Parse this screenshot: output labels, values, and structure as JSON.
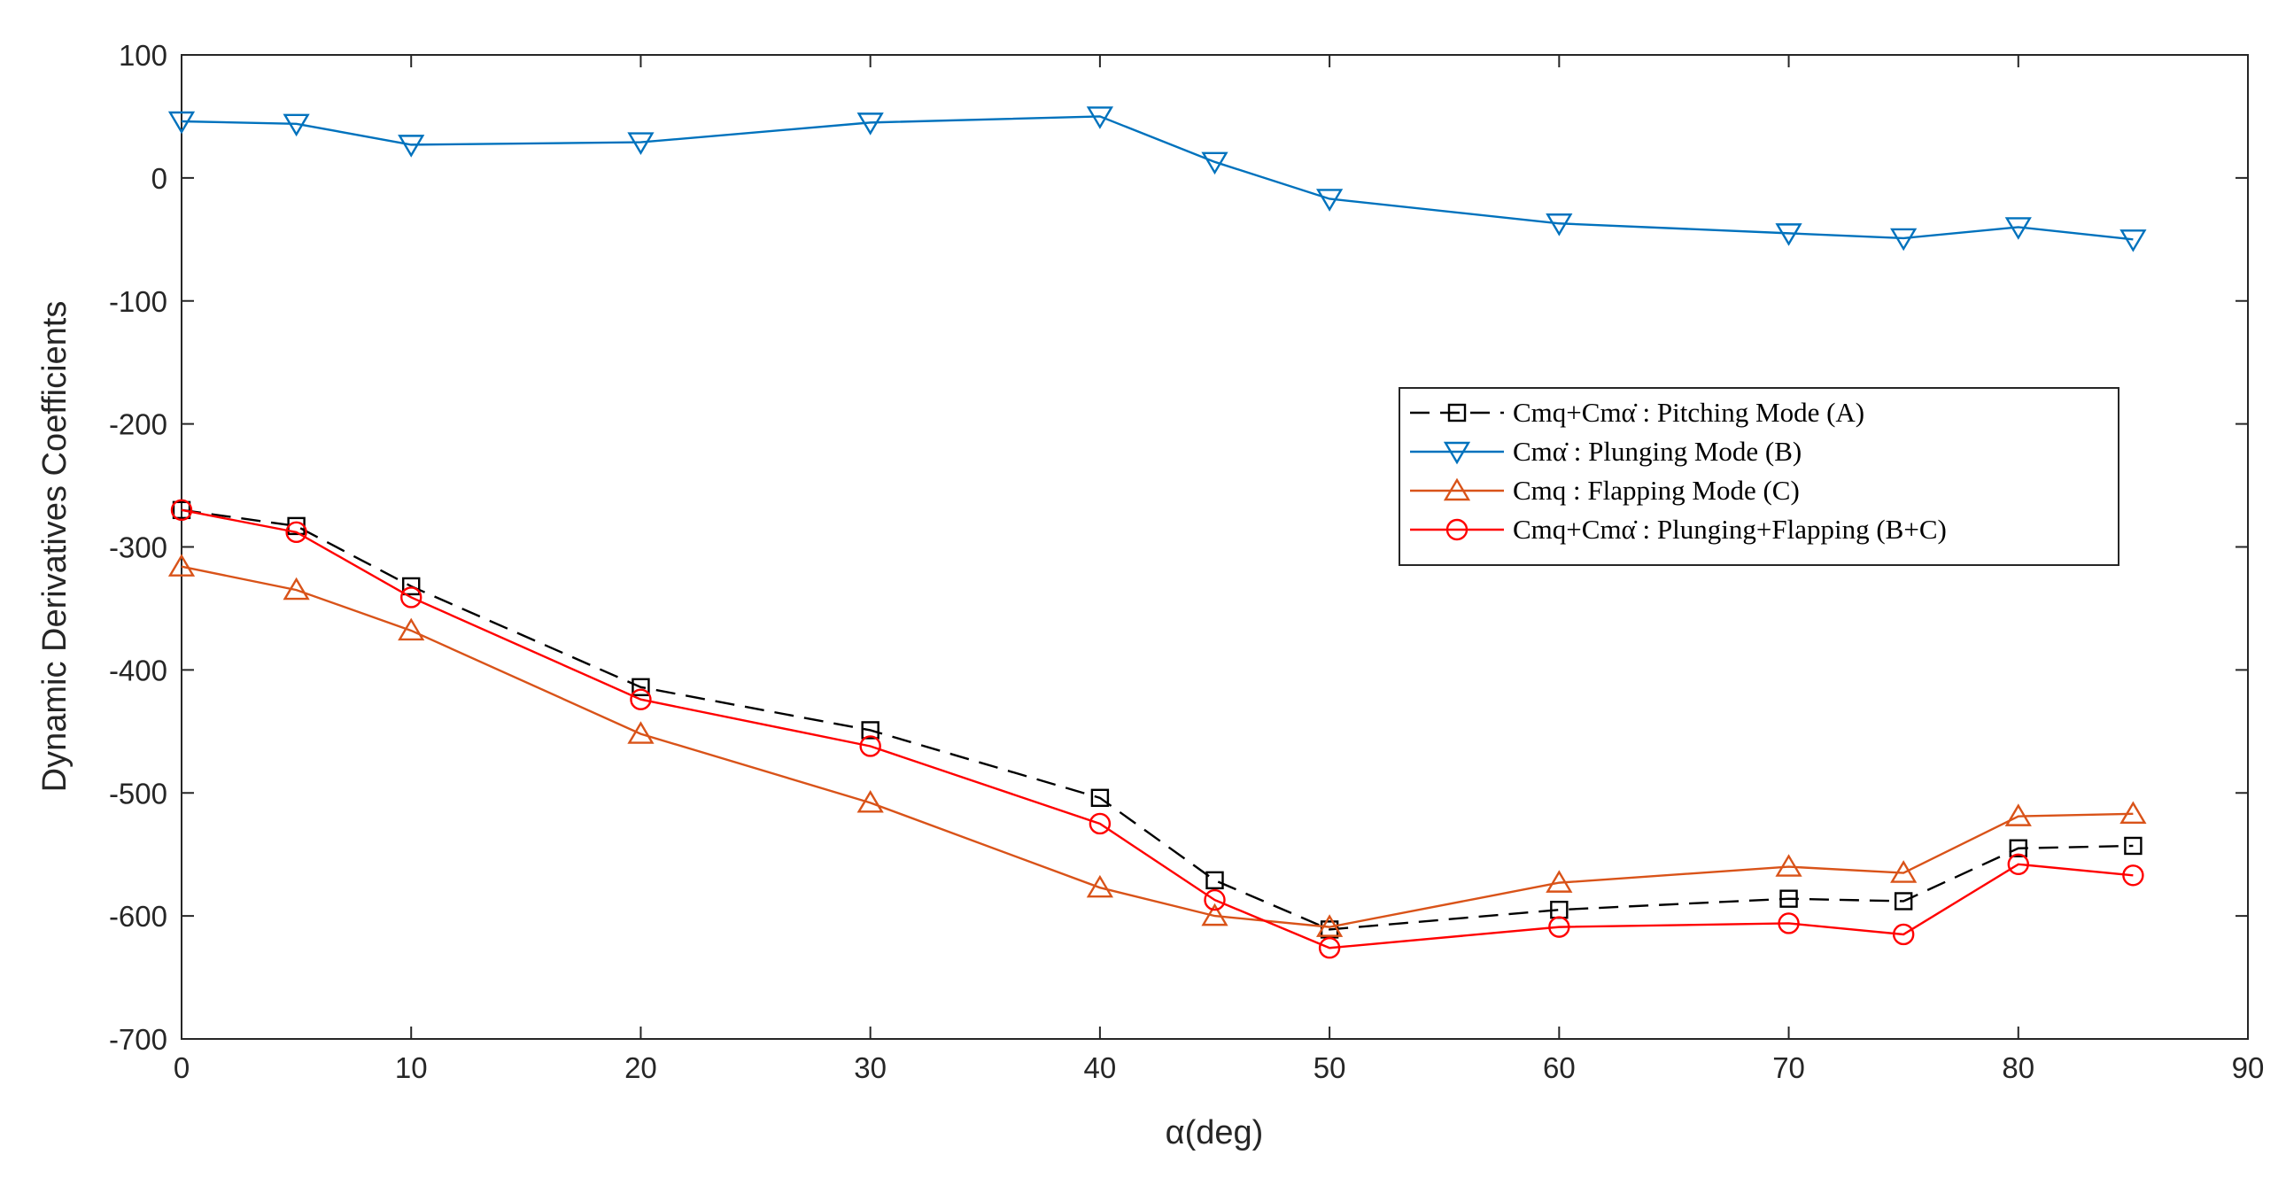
{
  "chart_data": {
    "type": "line",
    "title": "",
    "xlabel": "α(deg)",
    "ylabel": "Dynamic Derivatives Coefficients",
    "xlim": [
      0,
      90
    ],
    "ylim": [
      -700,
      100
    ],
    "x_ticks": [
      0,
      10,
      20,
      30,
      40,
      50,
      60,
      70,
      80,
      90
    ],
    "y_ticks": [
      100,
      0,
      -100,
      -200,
      -300,
      -400,
      -500,
      -600,
      -700
    ],
    "grid": false,
    "legend_position": "right",
    "x": [
      0,
      5,
      10,
      20,
      30,
      40,
      45,
      50,
      60,
      70,
      75,
      80,
      85
    ],
    "series": [
      {
        "name": "Cmq+Cmα̇ : Pitching Mode (A)",
        "color": "#000000",
        "marker": "square",
        "dashed": true,
        "values": [
          -270,
          -283,
          -332,
          -414,
          -449,
          -504,
          -571,
          -611,
          -595,
          -586,
          -588,
          -545,
          -543
        ]
      },
      {
        "name": "Cmα̇ : Plunging Mode (B)",
        "color": "#0072BD",
        "marker": "triangle-down",
        "dashed": false,
        "values": [
          46,
          44,
          27,
          29,
          45,
          50,
          13,
          -17,
          -37,
          -45,
          -49,
          -40,
          -50
        ]
      },
      {
        "name": "Cmq : Flapping Mode (C)",
        "color": "#D95319",
        "marker": "triangle-up",
        "dashed": false,
        "values": [
          -316,
          -335,
          -368,
          -452,
          -508,
          -577,
          -600,
          -609,
          -573,
          -560,
          -565,
          -519,
          -517
        ]
      },
      {
        "name": "Cmq+Cmα̇ : Plunging+Flapping (B+C)",
        "color": "#FF0000",
        "marker": "circle",
        "dashed": false,
        "values": [
          -270,
          -288,
          -341,
          -424,
          -462,
          -525,
          -587,
          -626,
          -609,
          -606,
          -615,
          -558,
          -567
        ]
      }
    ]
  }
}
